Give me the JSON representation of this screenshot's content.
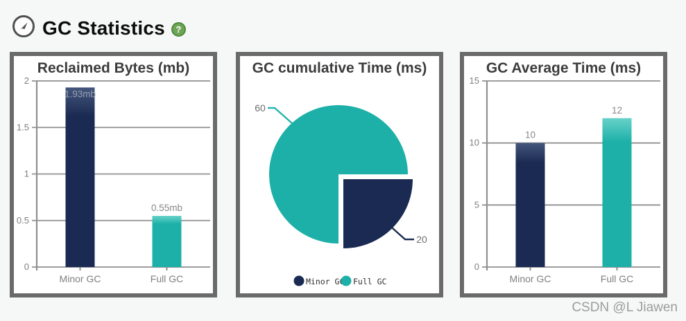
{
  "header": {
    "title": "GC Statistics",
    "help_glyph": "?",
    "compass_icon": "compass-icon",
    "help_icon": "help-icon"
  },
  "watermark": {
    "text": "CSDN @L Jiawen"
  },
  "colors": {
    "navy": "#1a2a52",
    "navy_light": "#45567c",
    "teal": "#1cb0a8",
    "teal_light": "#67d2c9",
    "grid": "#8f8f8f",
    "tick_text": "#7f7f7f",
    "value_text": "#878787",
    "value_text_inside": "#99a0b3",
    "callout_text": "#6f6f6f",
    "legend_text": "#2e2e2e",
    "panel_border": "#6a6a6a",
    "title_text": "#3c3c3c"
  },
  "chart_data": [
    {
      "type": "bar",
      "title": "Reclaimed Bytes (mb)",
      "categories": [
        "Minor GC",
        "Full GC"
      ],
      "values": [
        1.93,
        0.55
      ],
      "value_labels": [
        "1.93mb",
        "0.55mb"
      ],
      "series_colors": [
        "navy",
        "teal"
      ],
      "ylim": [
        0,
        2
      ],
      "yticks": [
        0,
        0.5,
        1,
        1.5,
        2
      ],
      "ytick_labels": [
        "0",
        "0.5",
        "1",
        "1.5",
        "2"
      ],
      "grid": true,
      "legend_position": "none"
    },
    {
      "type": "pie",
      "title": "GC cumulative Time (ms)",
      "slices": [
        {
          "label": "Minor GC",
          "value": 20,
          "color": "navy",
          "exploded": true
        },
        {
          "label": "Full GC",
          "value": 60,
          "color": "teal",
          "exploded": false
        }
      ],
      "callout_labels": [
        "20",
        "60"
      ],
      "legend": [
        {
          "label": "Minor GC",
          "color": "navy"
        },
        {
          "label": "Full GC",
          "color": "teal"
        }
      ],
      "legend_position": "bottom-center"
    },
    {
      "type": "bar",
      "title": "GC Average Time (ms)",
      "categories": [
        "Minor GC",
        "Full GC"
      ],
      "values": [
        10,
        12
      ],
      "value_labels": [
        "10",
        "12"
      ],
      "series_colors": [
        "navy",
        "teal"
      ],
      "ylim": [
        0,
        15
      ],
      "yticks": [
        0,
        5,
        10,
        15
      ],
      "ytick_labels": [
        "0",
        "5",
        "10",
        "15"
      ],
      "grid": true,
      "legend_position": "none"
    }
  ]
}
